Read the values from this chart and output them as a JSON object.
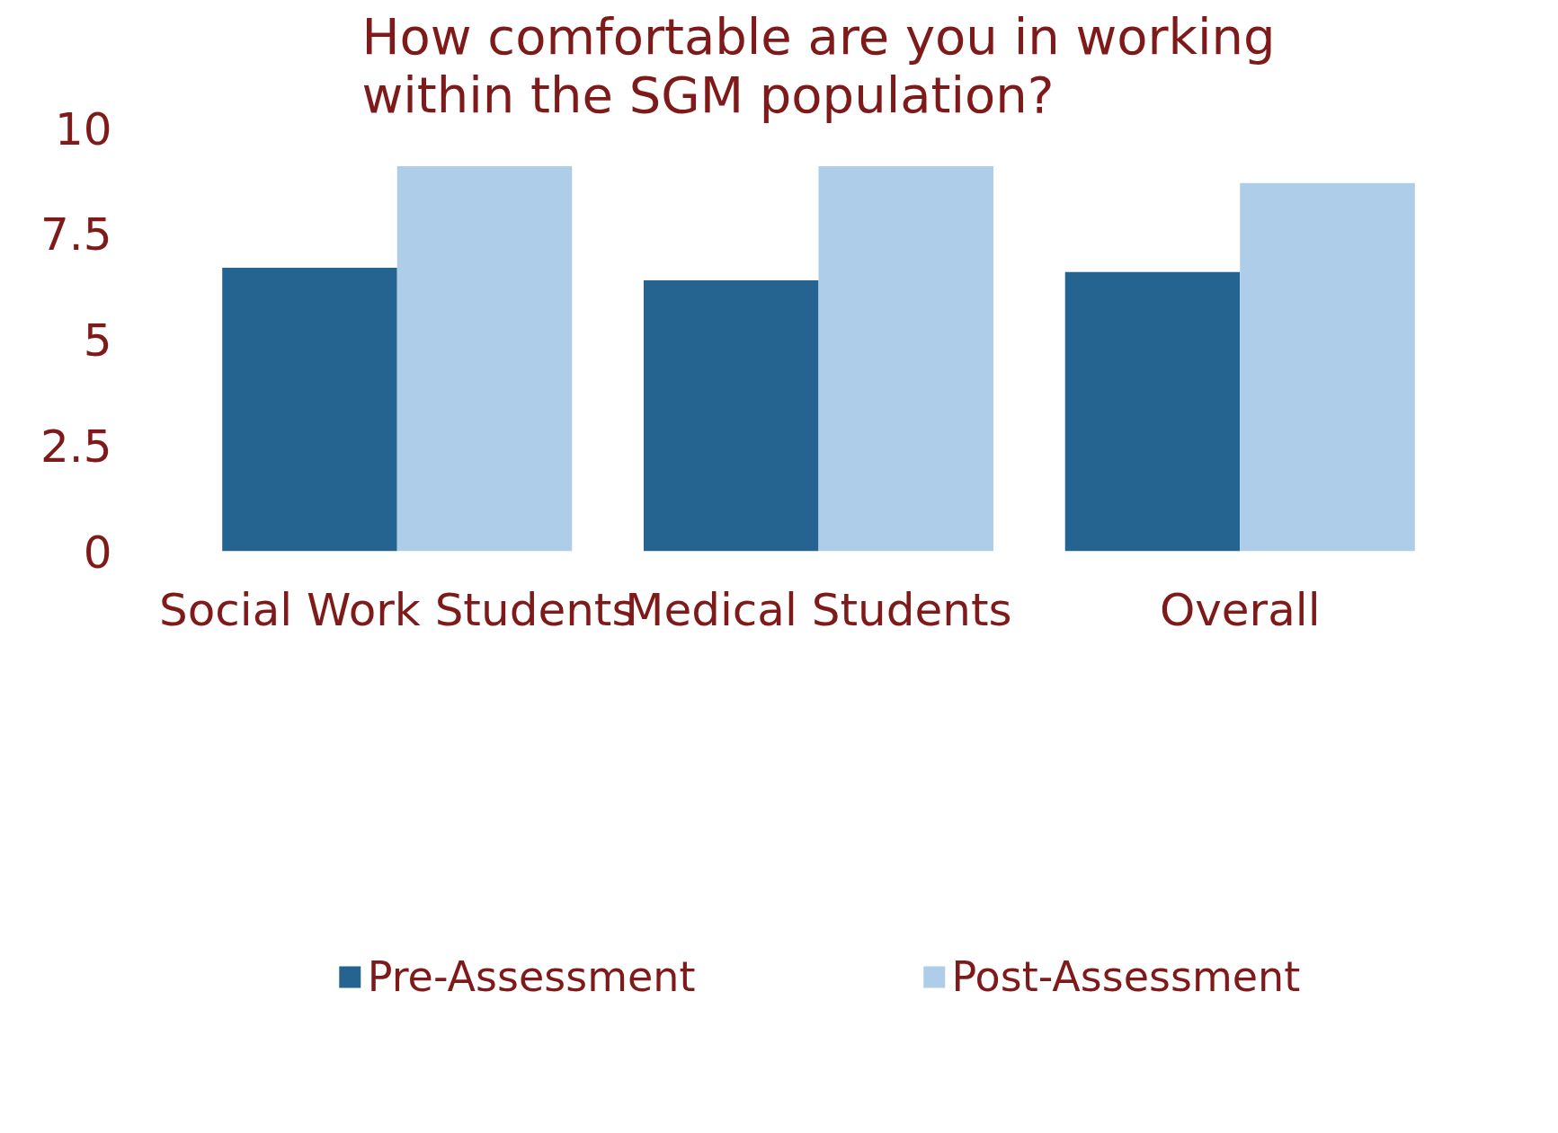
{
  "chart_data": {
    "type": "bar",
    "title": "How comfortable are you in working\nwithin the SGM population?",
    "categories": [
      "Social Work Students",
      "Medical Students",
      "Overall"
    ],
    "series": [
      {
        "name": "Pre-Assessment",
        "color": "#256390",
        "values": [
          6.7,
          6.4,
          6.6
        ]
      },
      {
        "name": "Post-Assessment",
        "color": "#aecde9",
        "values": [
          9.1,
          9.1,
          8.7
        ]
      }
    ],
    "ylim": [
      0,
      10
    ],
    "yticks": [
      0,
      2.5,
      5,
      7.5,
      10
    ],
    "grid": false,
    "legend": "bottom"
  }
}
